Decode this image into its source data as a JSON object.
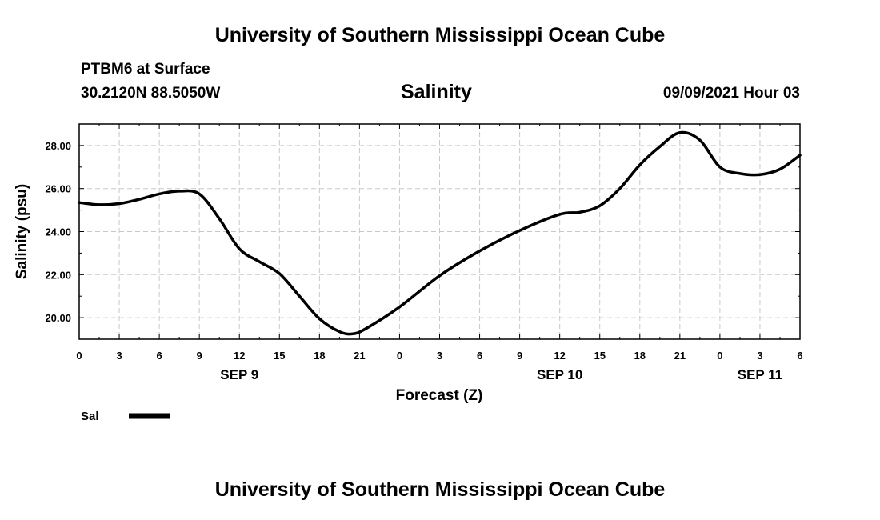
{
  "header": {
    "title": "University of Southern Mississippi Ocean Cube",
    "station": "PTBM6 at Surface",
    "coords": "30.2120N  88.5050W",
    "chart_name": "Salinity",
    "datetime": "09/09/2021 Hour 03"
  },
  "footer": {
    "title": "University of Southern Mississippi Ocean Cube"
  },
  "colors": {
    "line": "#000000",
    "grid": "#c8c8c8"
  },
  "chart_data": {
    "type": "line",
    "title": "Salinity",
    "xlabel": "Forecast (Z)",
    "ylabel": "Salinity (psu)",
    "x_unit": "forecast hour (0 = 00Z Sep 9)",
    "xlim": [
      0,
      54
    ],
    "ylim": [
      19.0,
      29.0
    ],
    "grid": true,
    "x_ticks": [
      0,
      3,
      6,
      9,
      12,
      15,
      18,
      21,
      24,
      27,
      30,
      33,
      36,
      39,
      42,
      45,
      48,
      51,
      54
    ],
    "x_tick_labels": [
      "0",
      "3",
      "6",
      "9",
      "12",
      "15",
      "18",
      "21",
      "0",
      "3",
      "6",
      "9",
      "12",
      "15",
      "18",
      "21",
      "0",
      "3",
      "6"
    ],
    "y_ticks": [
      20,
      22,
      24,
      26,
      28
    ],
    "y_tick_labels": [
      "20.00",
      "22.00",
      "24.00",
      "26.00",
      "28.00"
    ],
    "date_labels": [
      {
        "x": 12,
        "label": "SEP 9"
      },
      {
        "x": 36,
        "label": "SEP 10"
      },
      {
        "x": 51,
        "label": "SEP 11"
      }
    ],
    "legend": {
      "placement": "bottom-left",
      "entries": [
        "Sal"
      ]
    },
    "series": [
      {
        "name": "Sal",
        "x": [
          0,
          1.5,
          3,
          4.5,
          6,
          7.5,
          9,
          10.5,
          12,
          13.5,
          15,
          16.5,
          18,
          19.5,
          20.5,
          21.5,
          24,
          27,
          30,
          33,
          36,
          37.5,
          39,
          40.5,
          42,
          43.5,
          45,
          46.5,
          48,
          49.5,
          51,
          52.5,
          54
        ],
        "y": [
          25.35,
          25.25,
          25.3,
          25.5,
          25.75,
          25.88,
          25.75,
          24.6,
          23.2,
          22.6,
          22.05,
          21.0,
          19.95,
          19.35,
          19.25,
          19.5,
          20.5,
          21.95,
          23.1,
          24.05,
          24.8,
          24.9,
          25.2,
          26.0,
          27.1,
          27.95,
          28.6,
          28.25,
          27.0,
          26.7,
          26.65,
          26.9,
          27.55
        ]
      }
    ]
  }
}
